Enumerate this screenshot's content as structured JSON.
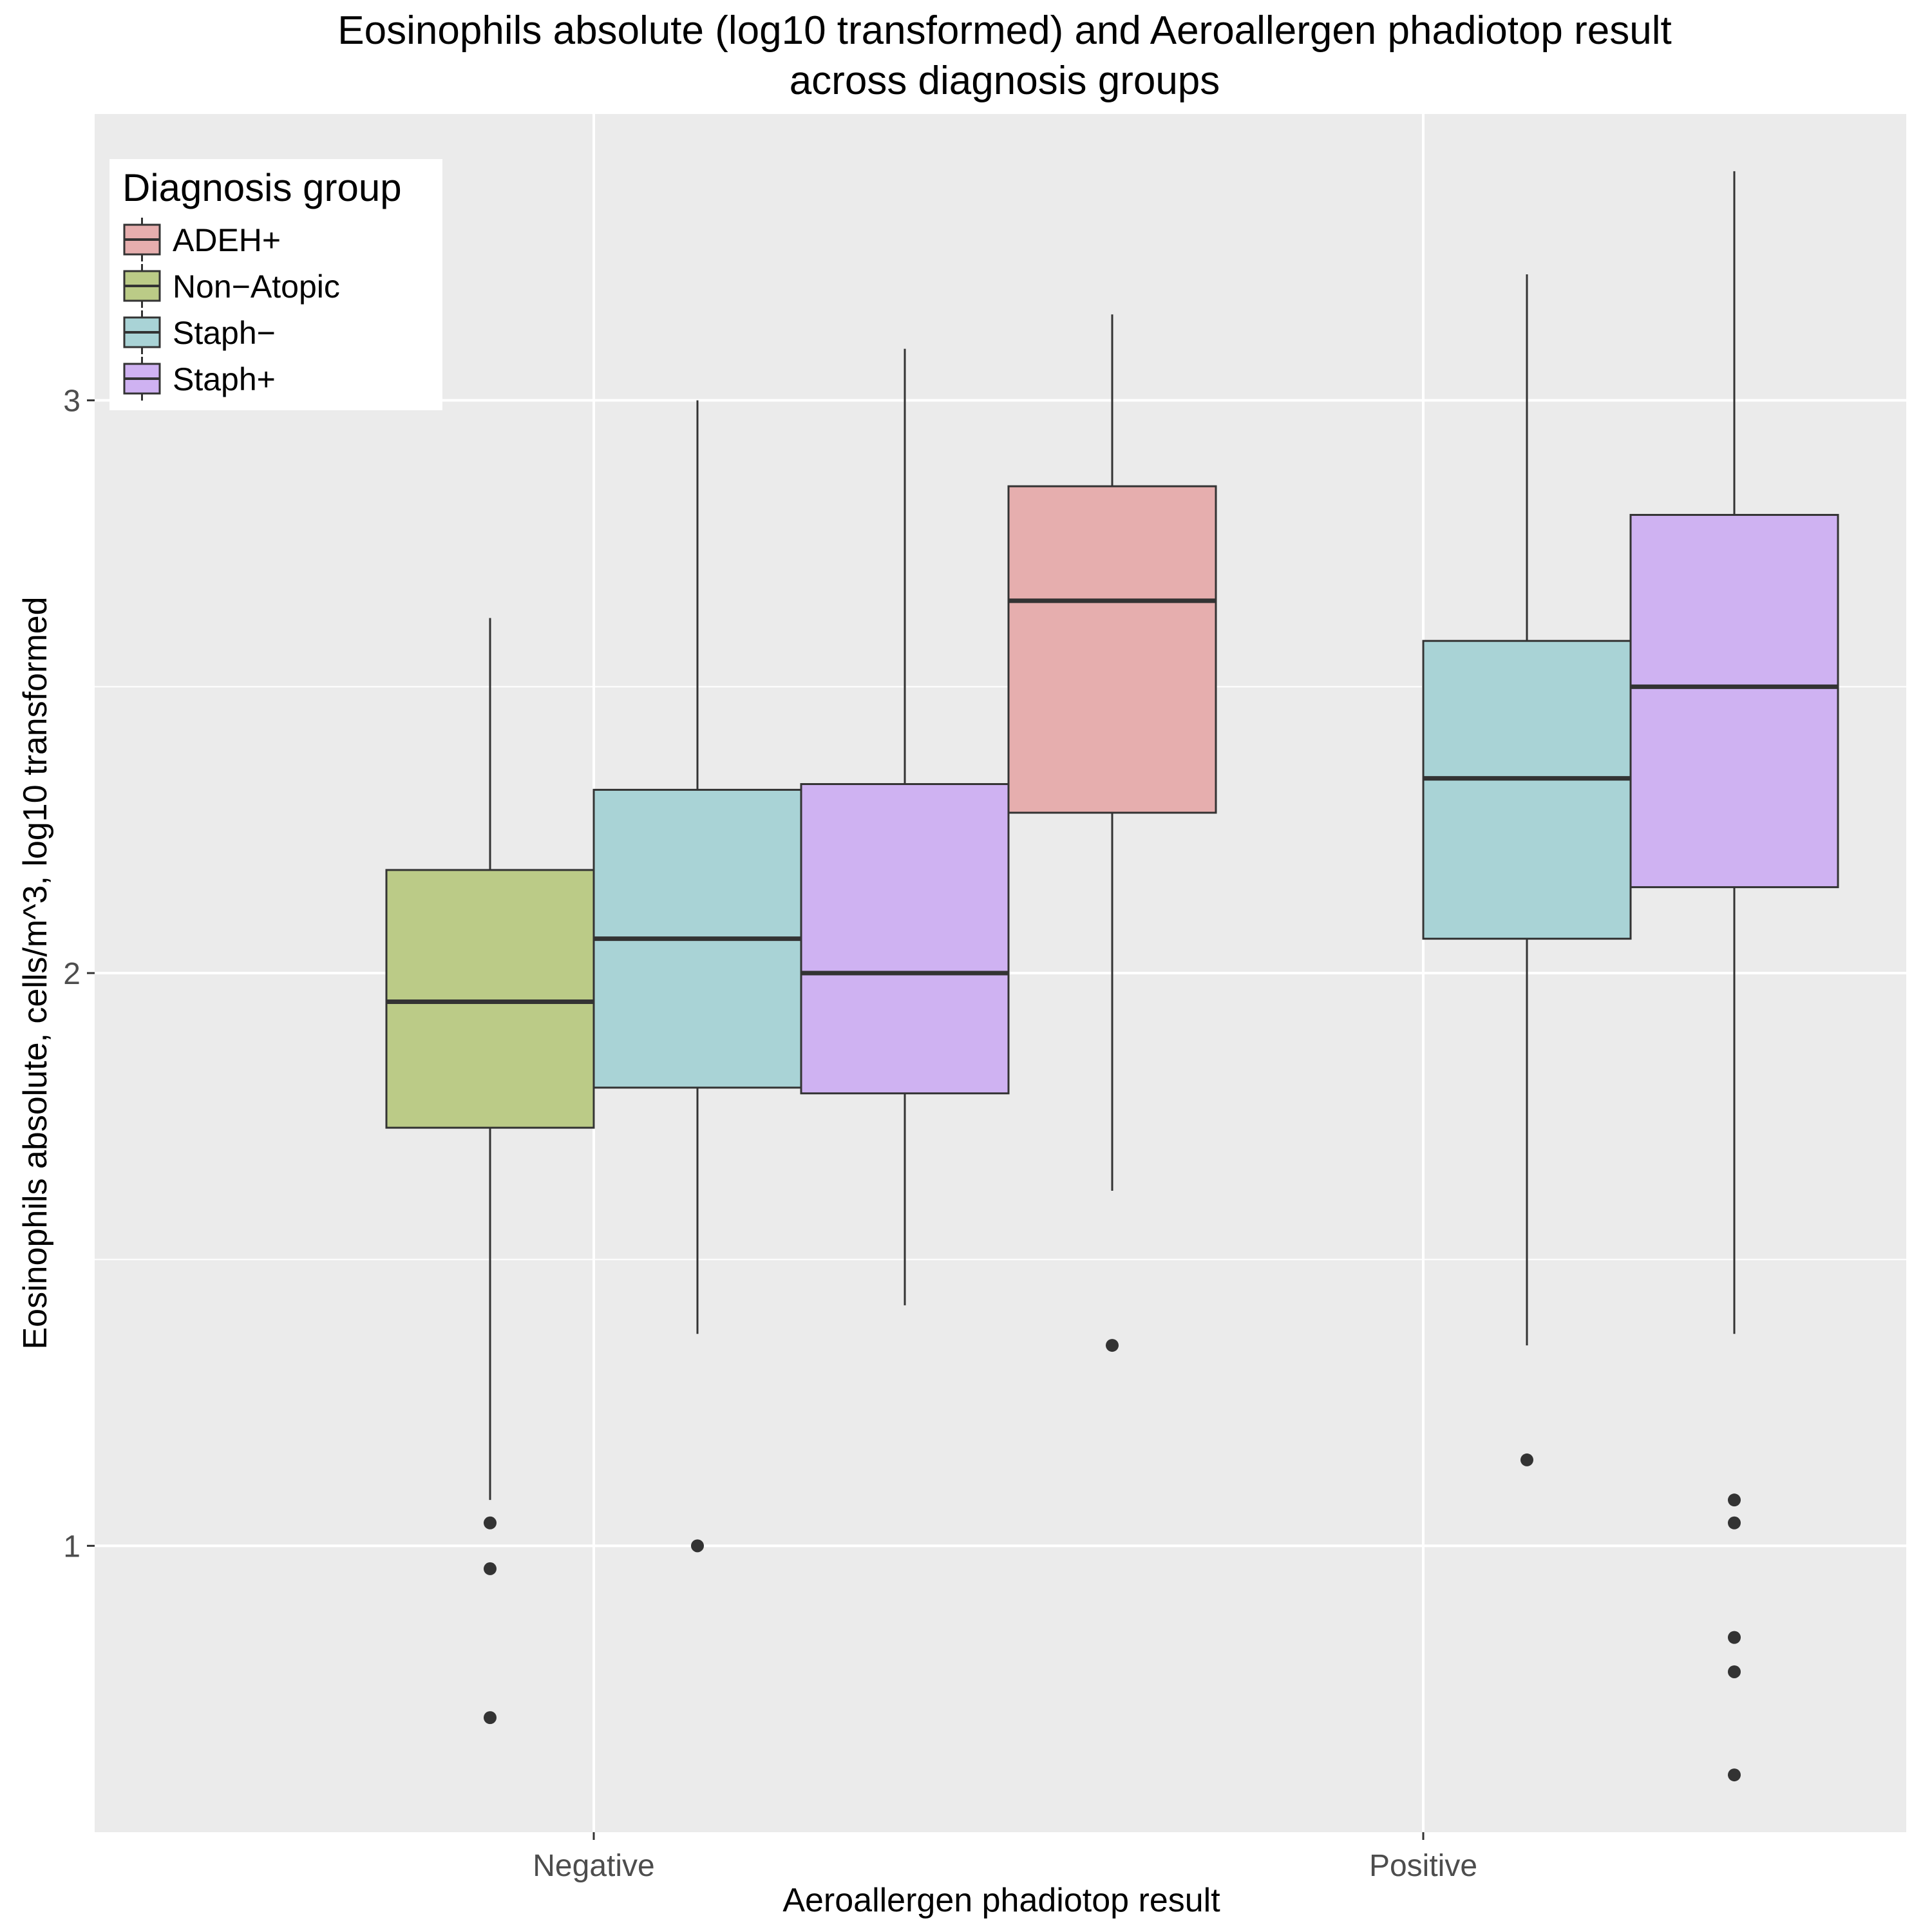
{
  "chart_data": {
    "type": "boxplot",
    "title_line1": "Eosinophils absolute (log10 transformed) and Aeroallergen phadiotop result",
    "title_line2": "across diagnosis groups",
    "xlabel": "Aeroallergen phadiotop result",
    "ylabel": "Eosinophils absolute, cells/m^3, log10 transformed",
    "ylim": [
      0.5,
      3.5
    ],
    "y_ticks": [
      1,
      2,
      3
    ],
    "y_tick_labels": [
      "1",
      "2",
      "3"
    ],
    "categories": [
      "Negative",
      "Positive"
    ],
    "grid": true,
    "legend": {
      "title": "Diagnosis group",
      "position": "top-left",
      "items": [
        {
          "name": "ADEH+",
          "color": "#e6aeae"
        },
        {
          "name": "Non−Atopic",
          "color": "#bbcb87"
        },
        {
          "name": "Staph−",
          "color": "#a9d3d6"
        },
        {
          "name": "Staph+",
          "color": "#cfb2f2"
        }
      ]
    },
    "groups": [
      "ADEH+",
      "Non−Atopic",
      "Staph−",
      "Staph+"
    ],
    "boxes": [
      {
        "category": "Negative",
        "group": "Non−Atopic",
        "whisker_low": 1.08,
        "q1": 1.73,
        "median": 1.95,
        "q3": 2.18,
        "whisker_high": 2.62,
        "outliers": [
          1.04,
          0.96,
          0.7
        ]
      },
      {
        "category": "Negative",
        "group": "Staph−",
        "whisker_low": 1.37,
        "q1": 1.8,
        "median": 2.06,
        "q3": 2.32,
        "whisker_high": 3.0,
        "outliers": [
          1.0
        ]
      },
      {
        "category": "Negative",
        "group": "Staph+",
        "whisker_low": 1.42,
        "q1": 1.79,
        "median": 2.0,
        "q3": 2.33,
        "whisker_high": 3.09,
        "outliers": []
      },
      {
        "category": "Positive",
        "group": "ADEH+",
        "whisker_low": 1.62,
        "q1": 2.28,
        "median": 2.65,
        "q3": 2.85,
        "whisker_high": 3.15,
        "outliers": [
          1.35
        ]
      },
      {
        "category": "Positive",
        "group": "Staph−",
        "whisker_low": 1.35,
        "q1": 2.06,
        "median": 2.34,
        "q3": 2.58,
        "whisker_high": 3.22,
        "outliers": [
          1.15
        ]
      },
      {
        "category": "Positive",
        "group": "Staph+",
        "whisker_low": 1.37,
        "q1": 2.15,
        "median": 2.5,
        "q3": 2.8,
        "whisker_high": 3.4,
        "outliers": [
          1.08,
          1.04,
          0.84,
          0.78,
          0.6
        ]
      }
    ]
  }
}
